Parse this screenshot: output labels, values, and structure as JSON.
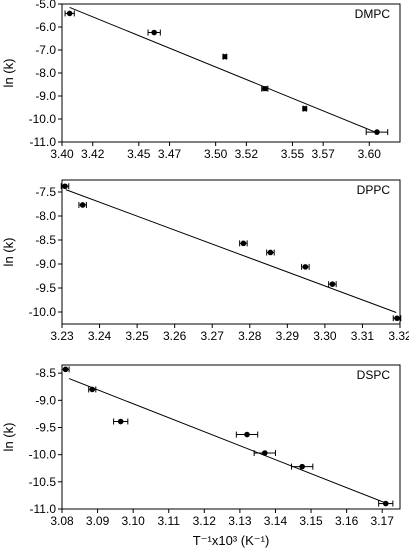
{
  "chart_data": [
    {
      "type": "scatter",
      "panel_label": "DMPC",
      "ylabel": "ln (k)",
      "xlabel": "",
      "xlim": [
        3.4,
        3.62
      ],
      "ylim": [
        -11.0,
        -5.0
      ],
      "x_ticks": [
        "3.40",
        "3.42",
        "3.45",
        "3.47",
        "3.50",
        "3.52",
        "3.55",
        "3.57",
        "3.60"
      ],
      "y_ticks": [
        "-5.0",
        "-6.0",
        "-7.0",
        "-8.0",
        "-9.0",
        "-10.0",
        "-11.0"
      ],
      "points": [
        {
          "x": 3.405,
          "y": -5.41,
          "xerr": 0.003
        },
        {
          "x": 3.46,
          "y": -6.24,
          "xerr": 0.004
        },
        {
          "x": 3.506,
          "y": -7.29,
          "xerr": 0.001
        },
        {
          "x": 3.532,
          "y": -8.68,
          "xerr": 0.002
        },
        {
          "x": 3.558,
          "y": -9.55,
          "xerr": 0.001
        },
        {
          "x": 3.605,
          "y": -10.57,
          "xerr": 0.007
        }
      ],
      "fit_line": {
        "x": [
          3.405,
          3.605
        ],
        "y": [
          -5.15,
          -10.6
        ]
      }
    },
    {
      "type": "scatter",
      "panel_label": "DPPC",
      "ylabel": "ln (k)",
      "xlabel": "",
      "xlim": [
        3.23,
        3.32
      ],
      "ylim": [
        -10.25,
        -7.25
      ],
      "x_ticks": [
        "3.23",
        "3.24",
        "3.25",
        "3.26",
        "3.27",
        "3.28",
        "3.29",
        "3.30",
        "3.31",
        "3.32"
      ],
      "y_ticks": [
        "-7.5",
        "-8.0",
        "-8.5",
        "-9.0",
        "-9.5",
        "-10.0"
      ],
      "points": [
        {
          "x": 3.2308,
          "y": -7.38,
          "xerr": 0.001
        },
        {
          "x": 3.2355,
          "y": -7.77,
          "xerr": 0.001
        },
        {
          "x": 3.2783,
          "y": -8.57,
          "xerr": 0.001
        },
        {
          "x": 3.2855,
          "y": -8.76,
          "xerr": 0.001
        },
        {
          "x": 3.2948,
          "y": -9.06,
          "xerr": 0.001
        },
        {
          "x": 3.302,
          "y": -9.42,
          "xerr": 0.001
        },
        {
          "x": 3.3192,
          "y": -10.13,
          "xerr": 0.001
        }
      ],
      "fit_line": {
        "x": [
          3.231,
          3.319
        ],
        "y": [
          -7.45,
          -10.01
        ]
      }
    },
    {
      "type": "scatter",
      "panel_label": "DSPC",
      "ylabel": "ln (k)",
      "xlabel": "T⁻¹x10³ (K⁻¹)",
      "xlim": [
        3.08,
        3.175
      ],
      "ylim": [
        -11.0,
        -8.35
      ],
      "x_ticks": [
        "3.08",
        "3.09",
        "3.10",
        "3.11",
        "3.12",
        "3.13",
        "3.14",
        "3.15",
        "3.16",
        "3.17"
      ],
      "y_ticks": [
        "-8.5",
        "-9.0",
        "-9.5",
        "-10.0",
        "-10.5",
        "-11.0"
      ],
      "points": [
        {
          "x": 3.081,
          "y": -8.43,
          "xerr": 0.001
        },
        {
          "x": 3.0885,
          "y": -8.8,
          "xerr": 0.001
        },
        {
          "x": 3.0965,
          "y": -9.39,
          "xerr": 0.002
        },
        {
          "x": 3.132,
          "y": -9.63,
          "xerr": 0.003
        },
        {
          "x": 3.137,
          "y": -9.97,
          "xerr": 0.003
        },
        {
          "x": 3.1475,
          "y": -10.22,
          "xerr": 0.003
        },
        {
          "x": 3.171,
          "y": -10.9,
          "xerr": 0.002
        }
      ],
      "fit_line": {
        "x": [
          3.082,
          3.171
        ],
        "y": [
          -8.6,
          -10.89
        ]
      }
    }
  ]
}
